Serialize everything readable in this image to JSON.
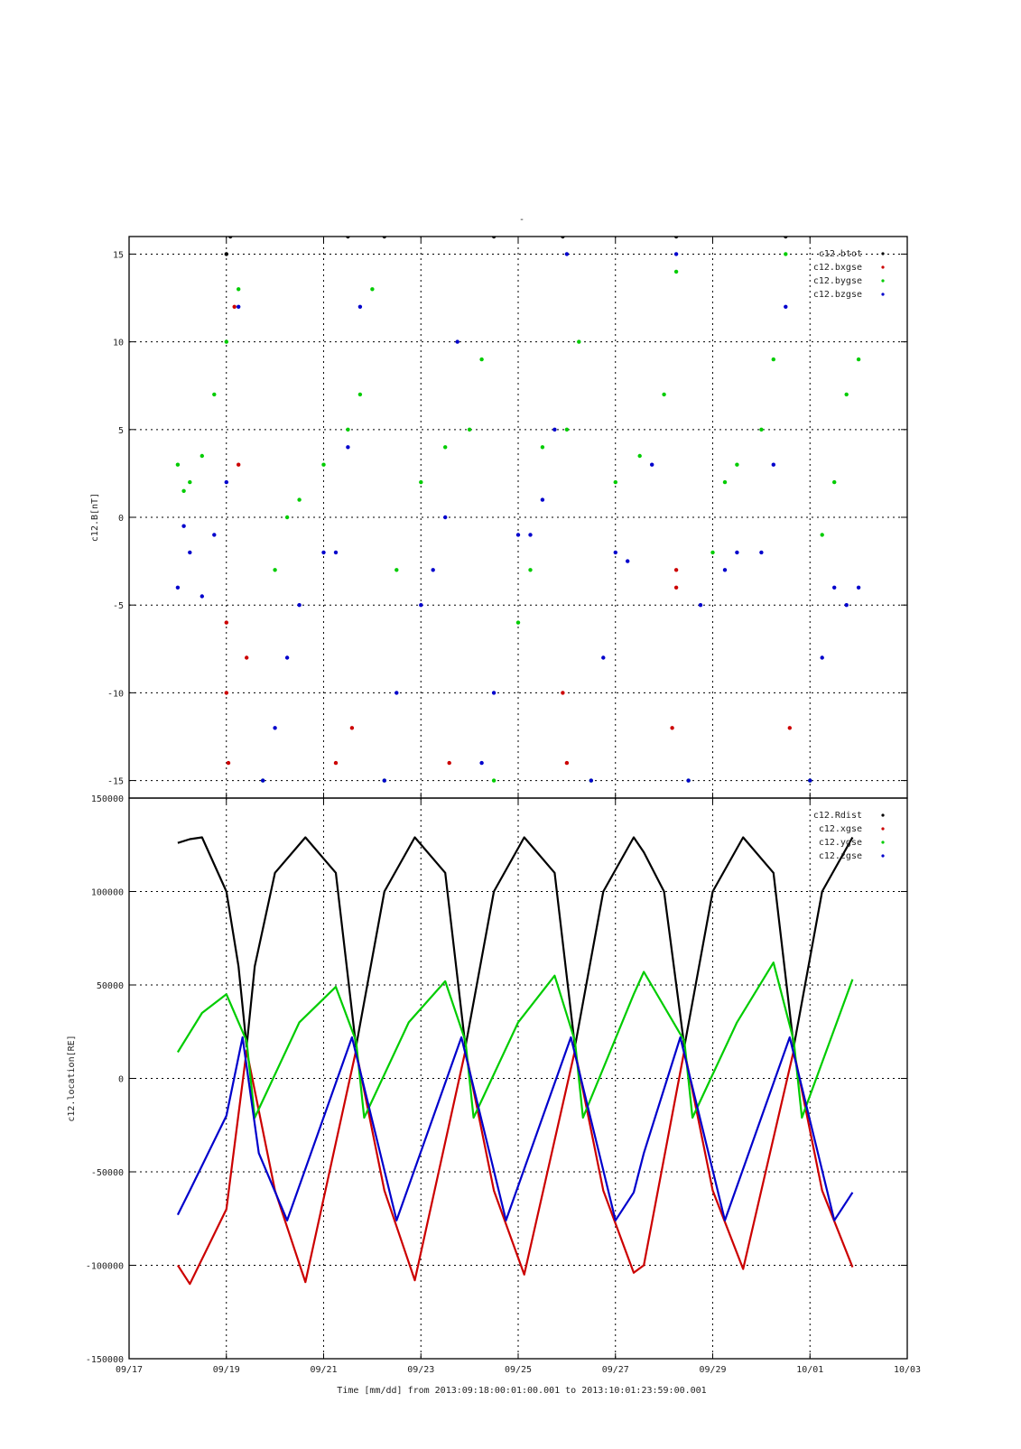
{
  "title": "-",
  "xlabel": "Time [mm/dd]  from 2013:09:18:00:01:00.001  to  2013:10:01:23:59:00.001",
  "x_ticks": [
    "09/17",
    "09/19",
    "09/21",
    "09/23",
    "09/25",
    "09/27",
    "09/29",
    "10/01",
    "10/03"
  ],
  "xlim": [
    "2013-09-17",
    "2013-10-03"
  ],
  "colors": {
    "btot": "#000000",
    "bx": "#cc0000",
    "by": "#00cc00",
    "bz": "#0000cc"
  },
  "chart_data": [
    {
      "type": "scatter",
      "title": "-",
      "ylabel": "c12.B[nT]",
      "ylim": [
        -16,
        16
      ],
      "y_ticks": [
        "15",
        "10",
        "5",
        "0",
        "-5",
        "-10",
        "-15"
      ],
      "y_tick_values": [
        15,
        10,
        5,
        0,
        -5,
        -10,
        -15
      ],
      "grid": true,
      "legend_position": "top-right",
      "series": [
        {
          "name": "c12.btot",
          "color": "#000000",
          "points": [
            [
              "2013-09-19T00:00",
              15
            ],
            [
              "2013-09-19T02:00",
              16
            ],
            [
              "2013-09-21T12:00",
              16
            ],
            [
              "2013-09-22T06:00",
              16
            ],
            [
              "2013-09-24T12:00",
              16
            ],
            [
              "2013-09-25T22:00",
              16
            ],
            [
              "2013-09-28T06:00",
              16
            ],
            [
              "2013-09-30T12:00",
              16
            ]
          ]
        },
        {
          "name": "c12.bxgse",
          "color": "#cc0000",
          "points": [
            [
              "2013-09-19T00:00",
              -6
            ],
            [
              "2013-09-19T00:00",
              -10
            ],
            [
              "2013-09-19T01:00",
              -14
            ],
            [
              "2013-09-19T04:00",
              12
            ],
            [
              "2013-09-19T06:00",
              3
            ],
            [
              "2013-09-19T10:00",
              -8
            ],
            [
              "2013-09-21T06:00",
              -14
            ],
            [
              "2013-09-21T14:00",
              -12
            ],
            [
              "2013-09-23T14:00",
              -14
            ],
            [
              "2013-09-25T22:00",
              -10
            ],
            [
              "2013-09-26T00:00",
              -14
            ],
            [
              "2013-09-28T06:00",
              -3
            ],
            [
              "2013-09-28T06:00",
              -4
            ],
            [
              "2013-09-28T04:00",
              -12
            ],
            [
              "2013-09-30T14:00",
              -12
            ]
          ]
        },
        {
          "name": "c12.bygse",
          "color": "#00cc00",
          "points": [
            [
              "2013-09-18T00:00",
              3
            ],
            [
              "2013-09-18T03:00",
              1.5
            ],
            [
              "2013-09-18T06:00",
              2
            ],
            [
              "2013-09-18T12:00",
              3.5
            ],
            [
              "2013-09-18T18:00",
              7
            ],
            [
              "2013-09-19T00:00",
              10
            ],
            [
              "2013-09-19T06:00",
              13
            ],
            [
              "2013-09-19T18:00",
              -15
            ],
            [
              "2013-09-20T00:00",
              -3
            ],
            [
              "2013-09-20T06:00",
              0
            ],
            [
              "2013-09-20T12:00",
              1
            ],
            [
              "2013-09-21T00:00",
              3
            ],
            [
              "2013-09-21T12:00",
              5
            ],
            [
              "2013-09-21T18:00",
              7
            ],
            [
              "2013-09-22T00:00",
              13
            ],
            [
              "2013-09-22T06:00",
              -15
            ],
            [
              "2013-09-22T12:00",
              -3
            ],
            [
              "2013-09-23T00:00",
              2
            ],
            [
              "2013-09-23T12:00",
              4
            ],
            [
              "2013-09-24T00:00",
              5
            ],
            [
              "2013-09-24T06:00",
              9
            ],
            [
              "2013-09-24T12:00",
              -15
            ],
            [
              "2013-09-25T00:00",
              -6
            ],
            [
              "2013-09-25T06:00",
              -3
            ],
            [
              "2013-09-25T12:00",
              4
            ],
            [
              "2013-09-26T00:00",
              5
            ],
            [
              "2013-09-26T06:00",
              10
            ],
            [
              "2013-09-26T12:00",
              -15
            ],
            [
              "2013-09-27T00:00",
              2
            ],
            [
              "2013-09-27T12:00",
              3.5
            ],
            [
              "2013-09-28T00:00",
              7
            ],
            [
              "2013-09-28T06:00",
              14
            ],
            [
              "2013-09-28T12:00",
              -15
            ],
            [
              "2013-09-29T00:00",
              -2
            ],
            [
              "2013-09-29T06:00",
              2
            ],
            [
              "2013-09-29T12:00",
              3
            ],
            [
              "2013-09-30T00:00",
              5
            ],
            [
              "2013-09-30T06:00",
              9
            ],
            [
              "2013-09-30T12:00",
              15
            ],
            [
              "2013-10-01T00:00",
              -15
            ],
            [
              "2013-10-01T06:00",
              -1
            ],
            [
              "2013-10-01T12:00",
              2
            ],
            [
              "2013-10-01T18:00",
              7
            ],
            [
              "2013-10-02T00:00",
              9
            ]
          ]
        },
        {
          "name": "c12.bzgse",
          "color": "#0000cc",
          "points": [
            [
              "2013-09-18T00:00",
              -4
            ],
            [
              "2013-09-18T03:00",
              -0.5
            ],
            [
              "2013-09-18T06:00",
              -2
            ],
            [
              "2013-09-18T12:00",
              -4.5
            ],
            [
              "2013-09-18T18:00",
              -1
            ],
            [
              "2013-09-19T00:00",
              2
            ],
            [
              "2013-09-19T06:00",
              12
            ],
            [
              "2013-09-19T18:00",
              -15
            ],
            [
              "2013-09-20T00:00",
              -12
            ],
            [
              "2013-09-20T06:00",
              -8
            ],
            [
              "2013-09-20T12:00",
              -5
            ],
            [
              "2013-09-21T00:00",
              -2
            ],
            [
              "2013-09-21T06:00",
              -2
            ],
            [
              "2013-09-21T12:00",
              4
            ],
            [
              "2013-09-21T18:00",
              12
            ],
            [
              "2013-09-22T06:00",
              -15
            ],
            [
              "2013-09-22T12:00",
              -10
            ],
            [
              "2013-09-23T00:00",
              -5
            ],
            [
              "2013-09-23T06:00",
              -3
            ],
            [
              "2013-09-23T12:00",
              0
            ],
            [
              "2013-09-23T18:00",
              10
            ],
            [
              "2013-09-24T06:00",
              -14
            ],
            [
              "2013-09-24T12:00",
              -10
            ],
            [
              "2013-09-25T00:00",
              -1
            ],
            [
              "2013-09-25T06:00",
              -1
            ],
            [
              "2013-09-25T12:00",
              1
            ],
            [
              "2013-09-25T18:00",
              5
            ],
            [
              "2013-09-26T00:00",
              15
            ],
            [
              "2013-09-26T12:00",
              -15
            ],
            [
              "2013-09-26T18:00",
              -8
            ],
            [
              "2013-09-27T00:00",
              -2
            ],
            [
              "2013-09-27T06:00",
              -2.5
            ],
            [
              "2013-09-27T18:00",
              3
            ],
            [
              "2013-09-28T06:00",
              15
            ],
            [
              "2013-09-28T12:00",
              -15
            ],
            [
              "2013-09-28T18:00",
              -5
            ],
            [
              "2013-09-29T06:00",
              -3
            ],
            [
              "2013-09-29T12:00",
              -2
            ],
            [
              "2013-09-30T00:00",
              -2
            ],
            [
              "2013-09-30T06:00",
              3
            ],
            [
              "2013-09-30T12:00",
              12
            ],
            [
              "2013-10-01T00:00",
              -15
            ],
            [
              "2013-10-01T06:00",
              -8
            ],
            [
              "2013-10-01T12:00",
              -4
            ],
            [
              "2013-10-01T18:00",
              -5
            ],
            [
              "2013-10-02T00:00",
              -4
            ]
          ]
        }
      ]
    },
    {
      "type": "line",
      "ylabel": "c12.location[RE]",
      "ylim": [
        -150000,
        150000
      ],
      "y_ticks": [
        "150000",
        "100000",
        "50000",
        "0",
        "-50000",
        "-100000",
        "-150000"
      ],
      "y_tick_values": [
        150000,
        100000,
        50000,
        0,
        -50000,
        -100000,
        -150000
      ],
      "grid": true,
      "legend_position": "top-right",
      "orbit_period_hours": 54,
      "series": [
        {
          "name": "c12.Rdist",
          "color": "#000000",
          "points": [
            [
              "2013-09-18T00:00",
              126000
            ],
            [
              "2013-09-18T06:00",
              128000
            ],
            [
              "2013-09-18T12:00",
              129000
            ],
            [
              "2013-09-19T00:00",
              100000
            ],
            [
              "2013-09-19T06:00",
              60000
            ],
            [
              "2013-09-19T10:00",
              17000
            ],
            [
              "2013-09-19T14:00",
              60000
            ],
            [
              "2013-09-20T00:00",
              110000
            ],
            [
              "2013-09-20T15:00",
              129000
            ],
            [
              "2013-09-21T06:00",
              110000
            ],
            [
              "2013-09-21T16:00",
              17000
            ],
            [
              "2013-09-22T06:00",
              100000
            ],
            [
              "2013-09-22T21:00",
              129000
            ],
            [
              "2013-09-23T12:00",
              110000
            ],
            [
              "2013-09-23T22:00",
              17000
            ],
            [
              "2013-09-24T12:00",
              100000
            ],
            [
              "2013-09-25T03:00",
              129000
            ],
            [
              "2013-09-25T18:00",
              110000
            ],
            [
              "2013-09-26T04:00",
              17000
            ],
            [
              "2013-09-26T18:00",
              100000
            ],
            [
              "2013-09-27T09:00",
              129000
            ],
            [
              "2013-09-27T14:00",
              121000
            ],
            [
              "2013-09-28T00:00",
              100000
            ],
            [
              "2013-09-28T10:00",
              17000
            ],
            [
              "2013-09-29T00:00",
              100000
            ],
            [
              "2013-09-29T15:00",
              129000
            ],
            [
              "2013-09-30T06:00",
              110000
            ],
            [
              "2013-09-30T16:00",
              17000
            ],
            [
              "2013-10-01T06:00",
              100000
            ],
            [
              "2013-10-01T21:00",
              129000
            ]
          ]
        },
        {
          "name": "c12.xgse",
          "color": "#cc0000",
          "points": [
            [
              "2013-09-18T00:00",
              -100000
            ],
            [
              "2013-09-18T06:00",
              -110000
            ],
            [
              "2013-09-19T00:00",
              -70000
            ],
            [
              "2013-09-19T10:00",
              15000
            ],
            [
              "2013-09-20T00:00",
              -60000
            ],
            [
              "2013-09-20T15:00",
              -109000
            ],
            [
              "2013-09-21T16:00",
              15000
            ],
            [
              "2013-09-22T06:00",
              -60000
            ],
            [
              "2013-09-22T21:00",
              -108000
            ],
            [
              "2013-09-23T22:00",
              15000
            ],
            [
              "2013-09-24T12:00",
              -60000
            ],
            [
              "2013-09-25T03:00",
              -105000
            ],
            [
              "2013-09-26T04:00",
              15000
            ],
            [
              "2013-09-26T18:00",
              -60000
            ],
            [
              "2013-09-27T09:00",
              -104000
            ],
            [
              "2013-09-27T14:00",
              -100000
            ],
            [
              "2013-09-28T10:00",
              15000
            ],
            [
              "2013-09-29T00:00",
              -60000
            ],
            [
              "2013-09-29T15:00",
              -102000
            ],
            [
              "2013-09-30T16:00",
              15000
            ],
            [
              "2013-10-01T06:00",
              -60000
            ],
            [
              "2013-10-01T21:00",
              -101000
            ]
          ]
        },
        {
          "name": "c12.ygse",
          "color": "#00cc00",
          "points": [
            [
              "2013-09-18T00:00",
              14000
            ],
            [
              "2013-09-18T12:00",
              35000
            ],
            [
              "2013-09-19T00:00",
              45000
            ],
            [
              "2013-09-19T10:00",
              20000
            ],
            [
              "2013-09-19T14:00",
              -21000
            ],
            [
              "2013-09-20T12:00",
              30000
            ],
            [
              "2013-09-21T06:00",
              49000
            ],
            [
              "2013-09-21T16:00",
              20000
            ],
            [
              "2013-09-21T20:00",
              -21000
            ],
            [
              "2013-09-22T18:00",
              30000
            ],
            [
              "2013-09-23T12:00",
              52000
            ],
            [
              "2013-09-23T22:00",
              20000
            ],
            [
              "2013-09-24T02:00",
              -21000
            ],
            [
              "2013-09-25T00:00",
              30000
            ],
            [
              "2013-09-25T18:00",
              55000
            ],
            [
              "2013-09-26T04:00",
              20000
            ],
            [
              "2013-09-26T08:00",
              -21000
            ],
            [
              "2013-09-27T09:00",
              45000
            ],
            [
              "2013-09-27T14:00",
              57000
            ],
            [
              "2013-09-28T10:00",
              20000
            ],
            [
              "2013-09-28T14:00",
              -21000
            ],
            [
              "2013-09-29T12:00",
              30000
            ],
            [
              "2013-09-30T06:00",
              62000
            ],
            [
              "2013-09-30T16:00",
              20000
            ],
            [
              "2013-09-30T20:00",
              -21000
            ],
            [
              "2013-10-01T21:00",
              53000
            ]
          ]
        },
        {
          "name": "c12.zgse",
          "color": "#0000cc",
          "points": [
            [
              "2013-09-18T00:00",
              -73000
            ],
            [
              "2013-09-18T06:00",
              -60000
            ],
            [
              "2013-09-19T00:00",
              -20000
            ],
            [
              "2013-09-19T08:00",
              22000
            ],
            [
              "2013-09-19T16:00",
              -40000
            ],
            [
              "2013-09-20T06:00",
              -76000
            ],
            [
              "2013-09-21T14:00",
              22000
            ],
            [
              "2013-09-22T12:00",
              -76000
            ],
            [
              "2013-09-23T20:00",
              22000
            ],
            [
              "2013-09-24T18:00",
              -76000
            ],
            [
              "2013-09-26T02:00",
              22000
            ],
            [
              "2013-09-27T00:00",
              -76000
            ],
            [
              "2013-09-27T09:00",
              -61000
            ],
            [
              "2013-09-27T14:00",
              -40000
            ],
            [
              "2013-09-28T08:00",
              22000
            ],
            [
              "2013-09-29T06:00",
              -76000
            ],
            [
              "2013-09-30T14:00",
              22000
            ],
            [
              "2013-10-01T12:00",
              -76000
            ],
            [
              "2013-10-01T21:00",
              -61000
            ]
          ]
        }
      ]
    }
  ]
}
